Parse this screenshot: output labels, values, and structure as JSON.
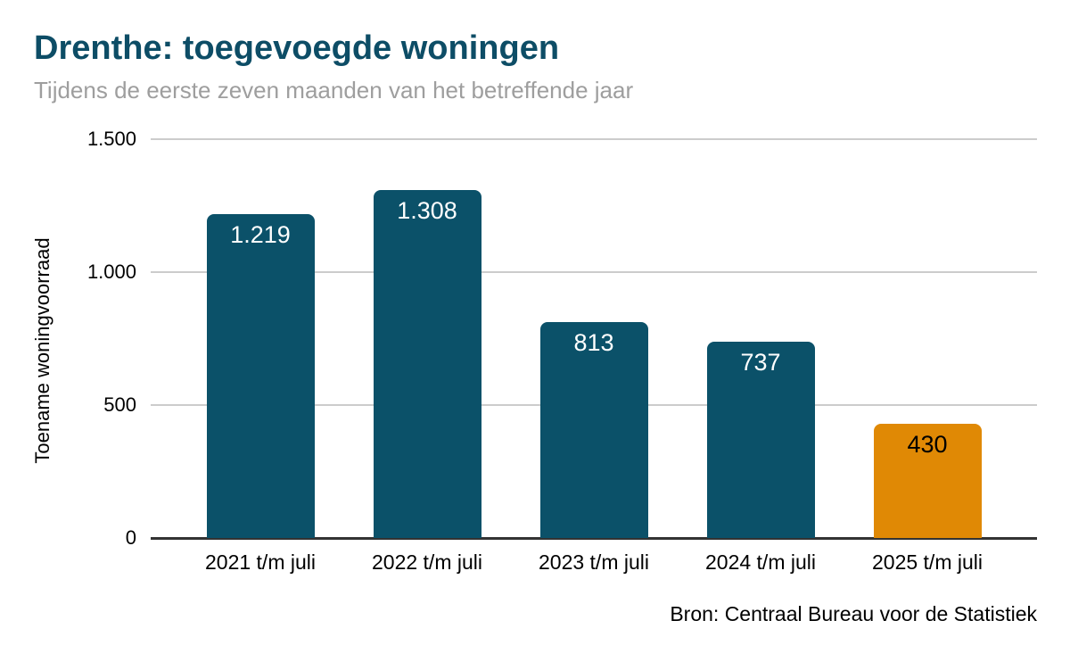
{
  "header": {
    "title": "Drenthe: toegevoegde woningen",
    "subtitle": "Tijdens de eerste zeven maanden van het betreffende jaar"
  },
  "chart_data": {
    "type": "bar",
    "title": "Drenthe: toegevoegde woningen",
    "subtitle": "Tijdens de eerste zeven maanden van het betreffende jaar",
    "xlabel": "",
    "ylabel": "Toename woningvoorraad",
    "ylim": [
      0,
      1500
    ],
    "grid": true,
    "legend_position": "none",
    "categories": [
      "2021 t/m juli",
      "2022 t/m juli",
      "2023 t/m juli",
      "2024 t/m juli",
      "2025 t/m juli"
    ],
    "values": [
      1219,
      1308,
      813,
      737,
      430
    ],
    "value_labels": [
      "1.219",
      "1.308",
      "813",
      "737",
      "430"
    ],
    "bar_colors": [
      "#0b5169",
      "#0b5169",
      "#0b5169",
      "#0b5169",
      "#e08905"
    ],
    "value_label_colors": [
      "#ffffff",
      "#ffffff",
      "#ffffff",
      "#ffffff",
      "#000000"
    ],
    "yticks": [
      {
        "value": 0,
        "label": "0"
      },
      {
        "value": 500,
        "label": "500"
      },
      {
        "value": 1000,
        "label": "1.000"
      },
      {
        "value": 1500,
        "label": "1.500"
      }
    ]
  },
  "footer": {
    "source": "Bron: Centraal Bureau voor de Statistiek"
  },
  "colors": {
    "title_teal": "#0d4d66",
    "bar_teal": "#0b5169",
    "bar_orange": "#e08905",
    "subtitle_gray": "#9e9e9e",
    "gridline_gray": "#cccccc",
    "axis_dark": "#333333"
  }
}
